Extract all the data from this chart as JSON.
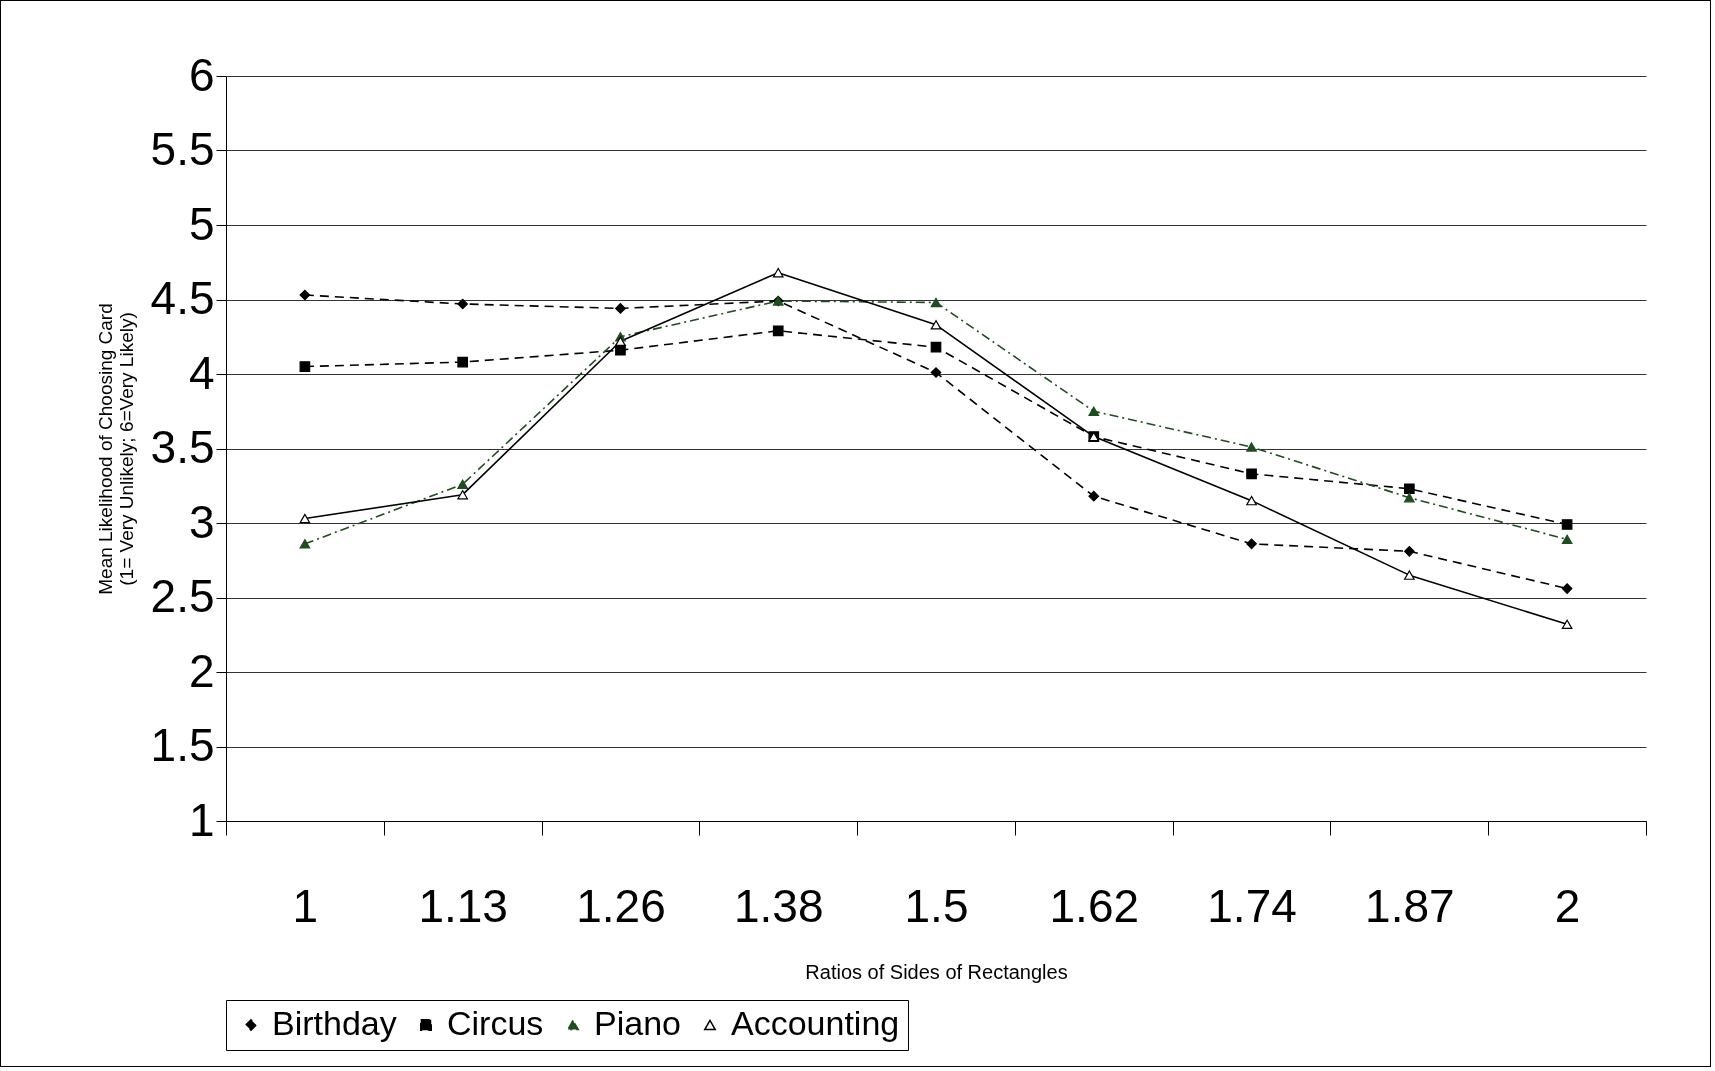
{
  "chart_data": {
    "type": "line",
    "xlabel": "Ratios of Sides of Rectangles",
    "ylabel": "Mean Likelihood of Choosing Card\n(1= Very Unlikely; 6=Very Likely)",
    "categories": [
      "1",
      "1.13",
      "1.26",
      "1.38",
      "1.5",
      "1.62",
      "1.74",
      "1.87",
      "2"
    ],
    "ylim": [
      1,
      6
    ],
    "yticks": [
      1,
      1.5,
      2,
      2.5,
      3,
      3.5,
      4,
      4.5,
      5,
      5.5,
      6
    ],
    "grid": "y",
    "legend": "bottom",
    "series": [
      {
        "name": "Birthday",
        "color": "#000000",
        "marker": "diamond",
        "line_style": "dashed",
        "values": [
          4.53,
          4.47,
          4.44,
          4.49,
          4.01,
          3.18,
          2.86,
          2.81,
          2.56
        ]
      },
      {
        "name": "Circus",
        "color": "#000000",
        "marker": "square",
        "line_style": "dashed",
        "values": [
          4.05,
          4.08,
          4.16,
          4.29,
          4.18,
          3.58,
          3.33,
          3.23,
          2.99
        ]
      },
      {
        "name": "Piano",
        "color": "#1f4d1f",
        "marker": "triangle",
        "line_style": "dashdot",
        "values": [
          2.86,
          3.26,
          4.25,
          4.49,
          4.48,
          3.75,
          3.51,
          3.17,
          2.89
        ]
      },
      {
        "name": "Accounting",
        "color": "#000000",
        "marker": "triangle-open",
        "line_style": "solid",
        "values": [
          3.03,
          3.19,
          4.22,
          4.68,
          4.33,
          3.58,
          3.15,
          2.65,
          2.32
        ]
      }
    ]
  }
}
